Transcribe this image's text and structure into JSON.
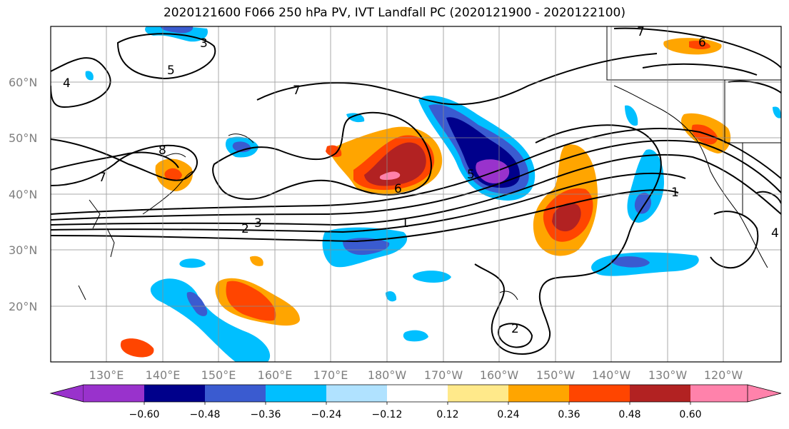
{
  "title": "2020121600 F066 250 hPa PV, IVT Landfall PC (2020121900 - 2020122100)",
  "latitude_labels": [
    "60°N",
    "50°N",
    "40°N",
    "30°N",
    "20°N"
  ],
  "longitude_labels": [
    "130°E",
    "140°E",
    "150°E",
    "160°E",
    "170°E",
    "180°W",
    "170°W",
    "160°W",
    "150°W",
    "140°W",
    "130°W",
    "120°W"
  ],
  "colorbar": {
    "tick_labels": [
      "−0.60",
      "−0.48",
      "−0.36",
      "−0.24",
      "−0.12",
      "0.12",
      "0.24",
      "0.36",
      "0.48",
      "0.60"
    ],
    "colors": [
      "#9932cc",
      "#00008b",
      "#3a5bd0",
      "#00bfff",
      "#b0e2ff",
      "#ffffff",
      "#ffe98a",
      "#ffa500",
      "#ff4500",
      "#b22222",
      "#ff82ab"
    ]
  },
  "contour_labels": [
    "4",
    "5",
    "3",
    "8",
    "7",
    "7",
    "6",
    "2",
    "3",
    "1",
    "5",
    "1",
    "6",
    "7",
    "2",
    "4"
  ]
}
